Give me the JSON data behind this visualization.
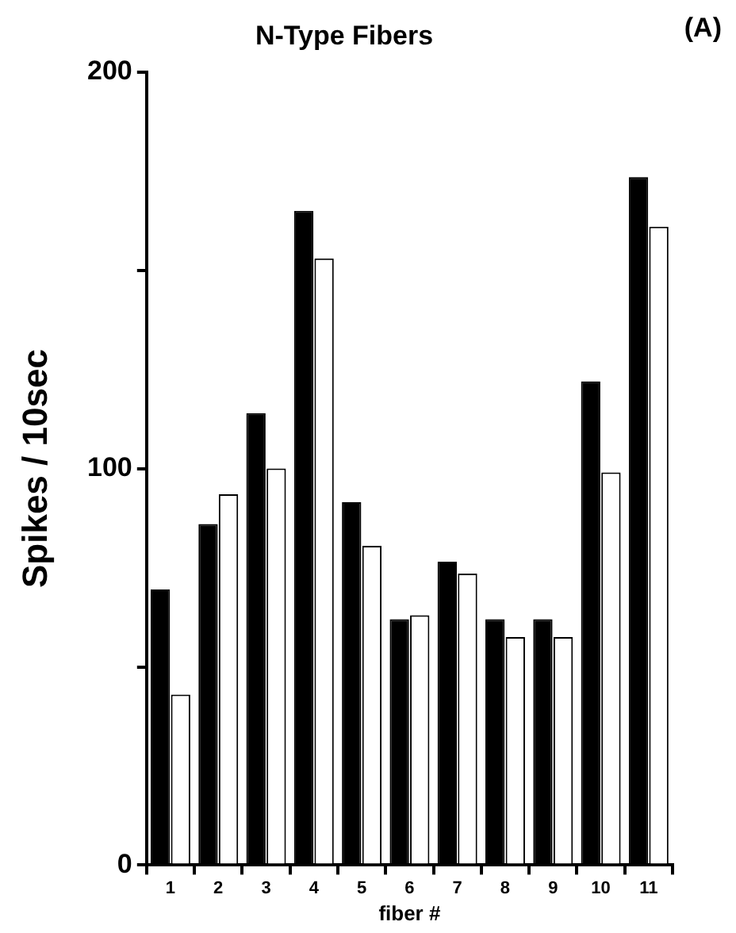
{
  "chart_data": {
    "type": "bar",
    "title": "N-Type Fibers",
    "xlabel": "fiber #",
    "ylabel": "Spikes / 10sec",
    "annotations": [
      "(A)"
    ],
    "categories": [
      "1",
      "2",
      "3",
      "4",
      "5",
      "6",
      "7",
      "8",
      "9",
      "10",
      "11"
    ],
    "series": [
      {
        "color": "#000000",
        "values": [
          69.5,
          86,
          114,
          165,
          91.5,
          62,
          76.5,
          62,
          62,
          122,
          173.5
        ]
      },
      {
        "color": "#ffffff",
        "values": [
          43,
          93.5,
          100,
          153,
          80.5,
          63,
          73.5,
          57.5,
          57.5,
          99,
          161
        ]
      }
    ],
    "ylim": [
      0,
      200
    ],
    "yticks": [
      0,
      {
        "value": 50,
        "label": null
      },
      100,
      {
        "value": 150,
        "label": null
      },
      200
    ],
    "grid": false,
    "legend": false
  }
}
